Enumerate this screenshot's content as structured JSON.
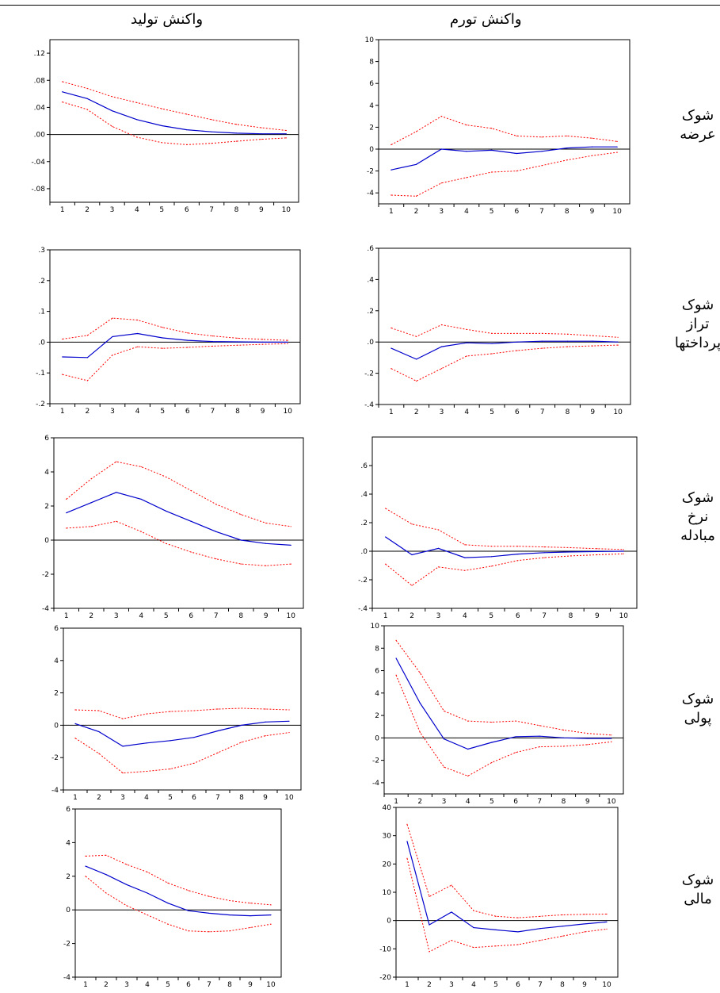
{
  "headers": {
    "output": "واکنش تولید",
    "inflation": "واکنش تورم"
  },
  "rows": [
    {
      "label": [
        "شوک",
        "عرضه"
      ]
    },
    {
      "label": [
        "شوک",
        "تراز",
        "پرداختها"
      ]
    },
    {
      "label": [
        "شوک",
        "نرخ",
        "مبادله"
      ]
    },
    {
      "label": [
        "شوک",
        "پولی"
      ]
    },
    {
      "label": [
        "شوک",
        "مالی"
      ]
    }
  ],
  "colors": {
    "response": "#0000cc",
    "band": "#ff0000",
    "zero": "#000000"
  },
  "chart_data": [
    {
      "id": "supply-output",
      "type": "line",
      "ylim": [
        -0.1,
        0.14
      ],
      "yticks": [
        ".12",
        ".08",
        ".04",
        ".00",
        "-.04",
        "-.08"
      ],
      "ytick_values": [
        0.12,
        0.08,
        0.04,
        0,
        -0.04,
        -0.08
      ],
      "x": [
        1,
        2,
        3,
        4,
        5,
        6,
        7,
        8,
        9,
        10
      ],
      "series": [
        {
          "role": "response",
          "values": [
            0.063,
            0.053,
            0.035,
            0.022,
            0.013,
            0.007,
            0.004,
            0.002,
            0.001,
            0.001
          ]
        },
        {
          "role": "upper",
          "values": [
            0.078,
            0.068,
            0.056,
            0.047,
            0.038,
            0.03,
            0.022,
            0.015,
            0.01,
            0.006
          ]
        },
        {
          "role": "lower",
          "values": [
            0.048,
            0.037,
            0.012,
            -0.004,
            -0.012,
            -0.015,
            -0.013,
            -0.01,
            -0.007,
            -0.005
          ]
        }
      ]
    },
    {
      "id": "supply-inflation",
      "type": "line",
      "ylim": [
        -5,
        10
      ],
      "yticks": [
        "10",
        "8",
        "6",
        "4",
        "2",
        "0",
        "-2",
        "-4"
      ],
      "ytick_values": [
        10,
        8,
        6,
        4,
        2,
        0,
        -2,
        -4
      ],
      "x": [
        1,
        2,
        3,
        4,
        5,
        6,
        7,
        8,
        9,
        10
      ],
      "series": [
        {
          "role": "response",
          "values": [
            -1.9,
            -1.4,
            0.0,
            -0.2,
            -0.1,
            -0.4,
            -0.2,
            0.1,
            0.2,
            0.2
          ]
        },
        {
          "role": "upper",
          "values": [
            0.4,
            1.6,
            3.0,
            2.2,
            1.9,
            1.2,
            1.1,
            1.2,
            1.0,
            0.7
          ]
        },
        {
          "role": "lower",
          "values": [
            -4.2,
            -4.3,
            -3.1,
            -2.6,
            -2.1,
            -2.0,
            -1.5,
            -1.0,
            -0.6,
            -0.3
          ]
        }
      ]
    },
    {
      "id": "bop-output",
      "type": "line",
      "ylim": [
        -0.2,
        0.3
      ],
      "yticks": [
        ".3",
        ".2",
        ".1",
        ".0",
        "-.1",
        "-.2"
      ],
      "ytick_values": [
        0.3,
        0.2,
        0.1,
        0,
        -0.1,
        -0.2
      ],
      "x": [
        1,
        2,
        3,
        4,
        5,
        6,
        7,
        8,
        9,
        10
      ],
      "series": [
        {
          "role": "response",
          "values": [
            -0.048,
            -0.05,
            0.018,
            0.028,
            0.014,
            0.006,
            0.002,
            0.001,
            0.0,
            0.0
          ]
        },
        {
          "role": "upper",
          "values": [
            0.01,
            0.022,
            0.078,
            0.072,
            0.048,
            0.03,
            0.02,
            0.013,
            0.009,
            0.006
          ]
        },
        {
          "role": "lower",
          "values": [
            -0.105,
            -0.125,
            -0.042,
            -0.015,
            -0.02,
            -0.017,
            -0.013,
            -0.01,
            -0.007,
            -0.005
          ]
        }
      ]
    },
    {
      "id": "bop-inflation",
      "type": "line",
      "ylim": [
        -0.4,
        0.6
      ],
      "yticks": [
        ".6",
        ".4",
        ".2",
        ".0",
        "-.2",
        "-.4"
      ],
      "ytick_values": [
        0.6,
        0.4,
        0.2,
        0,
        -0.2,
        -0.4
      ],
      "x": [
        1,
        2,
        3,
        4,
        5,
        6,
        7,
        8,
        9,
        10
      ],
      "series": [
        {
          "role": "response",
          "values": [
            -0.04,
            -0.11,
            -0.03,
            -0.005,
            -0.01,
            0.0,
            0.005,
            0.005,
            0.005,
            0.0
          ]
        },
        {
          "role": "upper",
          "values": [
            0.09,
            0.035,
            0.11,
            0.08,
            0.055,
            0.055,
            0.055,
            0.05,
            0.04,
            0.03
          ]
        },
        {
          "role": "lower",
          "values": [
            -0.17,
            -0.25,
            -0.17,
            -0.09,
            -0.075,
            -0.055,
            -0.04,
            -0.03,
            -0.025,
            -0.02
          ]
        }
      ]
    },
    {
      "id": "tot-output",
      "type": "line",
      "ylim": [
        -4,
        6
      ],
      "yticks": [
        "6",
        "4",
        "2",
        "0",
        "-2",
        "-4"
      ],
      "ytick_values": [
        6,
        4,
        2,
        0,
        -2,
        -4
      ],
      "x": [
        1,
        2,
        3,
        4,
        5,
        6,
        7,
        8,
        9,
        10
      ],
      "series": [
        {
          "role": "response",
          "values": [
            1.6,
            2.2,
            2.8,
            2.4,
            1.7,
            1.1,
            0.5,
            0.0,
            -0.2,
            -0.3
          ]
        },
        {
          "role": "upper",
          "values": [
            2.4,
            3.6,
            4.6,
            4.3,
            3.7,
            2.9,
            2.1,
            1.5,
            1.0,
            0.8
          ]
        },
        {
          "role": "lower",
          "values": [
            0.7,
            0.8,
            1.1,
            0.5,
            -0.2,
            -0.7,
            -1.1,
            -1.4,
            -1.5,
            -1.4
          ]
        }
      ]
    },
    {
      "id": "tot-inflation",
      "type": "line",
      "ylim": [
        -0.4,
        0.8
      ],
      "yticks": [
        ".6",
        ".4",
        ".2",
        ".0",
        "-.2",
        "-.4"
      ],
      "ytick_values": [
        0.6,
        0.4,
        0.2,
        0,
        -0.2,
        -0.4
      ],
      "x": [
        1,
        2,
        3,
        4,
        5,
        6,
        7,
        8,
        9,
        10
      ],
      "series": [
        {
          "role": "response",
          "values": [
            0.1,
            -0.025,
            0.02,
            -0.045,
            -0.038,
            -0.02,
            -0.01,
            -0.005,
            -0.002,
            0.0
          ]
        },
        {
          "role": "upper",
          "values": [
            0.3,
            0.19,
            0.15,
            0.045,
            0.035,
            0.035,
            0.03,
            0.025,
            0.018,
            0.012
          ]
        },
        {
          "role": "lower",
          "values": [
            -0.09,
            -0.24,
            -0.11,
            -0.135,
            -0.105,
            -0.065,
            -0.045,
            -0.033,
            -0.025,
            -0.018
          ]
        }
      ]
    },
    {
      "id": "monetary-output",
      "type": "line",
      "ylim": [
        -4,
        6
      ],
      "yticks": [
        "6",
        "4",
        "2",
        "0",
        "-2",
        "-4"
      ],
      "ytick_values": [
        6,
        4,
        2,
        0,
        -2,
        -4
      ],
      "x": [
        1,
        2,
        3,
        4,
        5,
        6,
        7,
        8,
        9,
        10
      ],
      "series": [
        {
          "role": "response",
          "values": [
            0.1,
            -0.4,
            -1.3,
            -1.1,
            -0.95,
            -0.75,
            -0.35,
            0.0,
            0.2,
            0.25
          ]
        },
        {
          "role": "upper",
          "values": [
            0.95,
            0.9,
            0.4,
            0.7,
            0.85,
            0.9,
            1.0,
            1.05,
            1.0,
            0.95
          ]
        },
        {
          "role": "lower",
          "values": [
            -0.8,
            -1.75,
            -2.95,
            -2.85,
            -2.7,
            -2.35,
            -1.7,
            -1.05,
            -0.65,
            -0.45
          ]
        }
      ]
    },
    {
      "id": "monetary-inflation",
      "type": "line",
      "ylim": [
        -5,
        10
      ],
      "yticks": [
        "10",
        "8",
        "6",
        "4",
        "2",
        "0",
        "-2",
        "-4"
      ],
      "ytick_values": [
        10,
        8,
        6,
        4,
        2,
        0,
        -2,
        -4
      ],
      "x": [
        1,
        2,
        3,
        4,
        5,
        6,
        7,
        8,
        9,
        10
      ],
      "series": [
        {
          "role": "response",
          "values": [
            7.1,
            3.1,
            -0.1,
            -1.0,
            -0.4,
            0.1,
            0.15,
            0.0,
            -0.05,
            -0.05
          ]
        },
        {
          "role": "upper",
          "values": [
            8.7,
            5.8,
            2.4,
            1.5,
            1.4,
            1.5,
            1.1,
            0.7,
            0.4,
            0.25
          ]
        },
        {
          "role": "lower",
          "values": [
            5.6,
            0.5,
            -2.6,
            -3.4,
            -2.2,
            -1.3,
            -0.8,
            -0.75,
            -0.6,
            -0.35
          ]
        }
      ]
    },
    {
      "id": "fiscal-output",
      "type": "line",
      "ylim": [
        -4,
        6
      ],
      "yticks": [
        "6",
        "4",
        "2",
        "0",
        "-2",
        "-4"
      ],
      "ytick_values": [
        6,
        4,
        2,
        0,
        -2,
        -4
      ],
      "x": [
        1,
        2,
        3,
        4,
        5,
        6,
        7,
        8,
        9,
        10
      ],
      "series": [
        {
          "role": "response",
          "values": [
            2.6,
            2.1,
            1.5,
            1.0,
            0.4,
            -0.05,
            -0.2,
            -0.3,
            -0.35,
            -0.3
          ]
        },
        {
          "role": "upper",
          "values": [
            3.2,
            3.25,
            2.7,
            2.25,
            1.6,
            1.15,
            0.8,
            0.55,
            0.4,
            0.3
          ]
        },
        {
          "role": "lower",
          "values": [
            2.0,
            1.0,
            0.25,
            -0.3,
            -0.85,
            -1.25,
            -1.3,
            -1.25,
            -1.05,
            -0.85
          ]
        }
      ]
    },
    {
      "id": "fiscal-inflation",
      "type": "line",
      "ylim": [
        -20,
        40
      ],
      "yticks": [
        "40",
        "30",
        "20",
        "10",
        "0",
        "-10",
        "-20"
      ],
      "ytick_values": [
        40,
        30,
        20,
        10,
        0,
        -10,
        -20
      ],
      "x": [
        1,
        2,
        3,
        4,
        5,
        6,
        7,
        8,
        9,
        10
      ],
      "series": [
        {
          "role": "response",
          "values": [
            28,
            -1.5,
            3,
            -2.5,
            -3.3,
            -4,
            -2.8,
            -2,
            -1.2,
            -0.5
          ]
        },
        {
          "role": "upper",
          "values": [
            34,
            8.5,
            12.5,
            3.5,
            1.5,
            1,
            1.5,
            2,
            2.2,
            2.3
          ]
        },
        {
          "role": "lower",
          "values": [
            22,
            -11,
            -7,
            -9.5,
            -9,
            -8.5,
            -7,
            -5.5,
            -4,
            -3
          ]
        }
      ]
    }
  ]
}
